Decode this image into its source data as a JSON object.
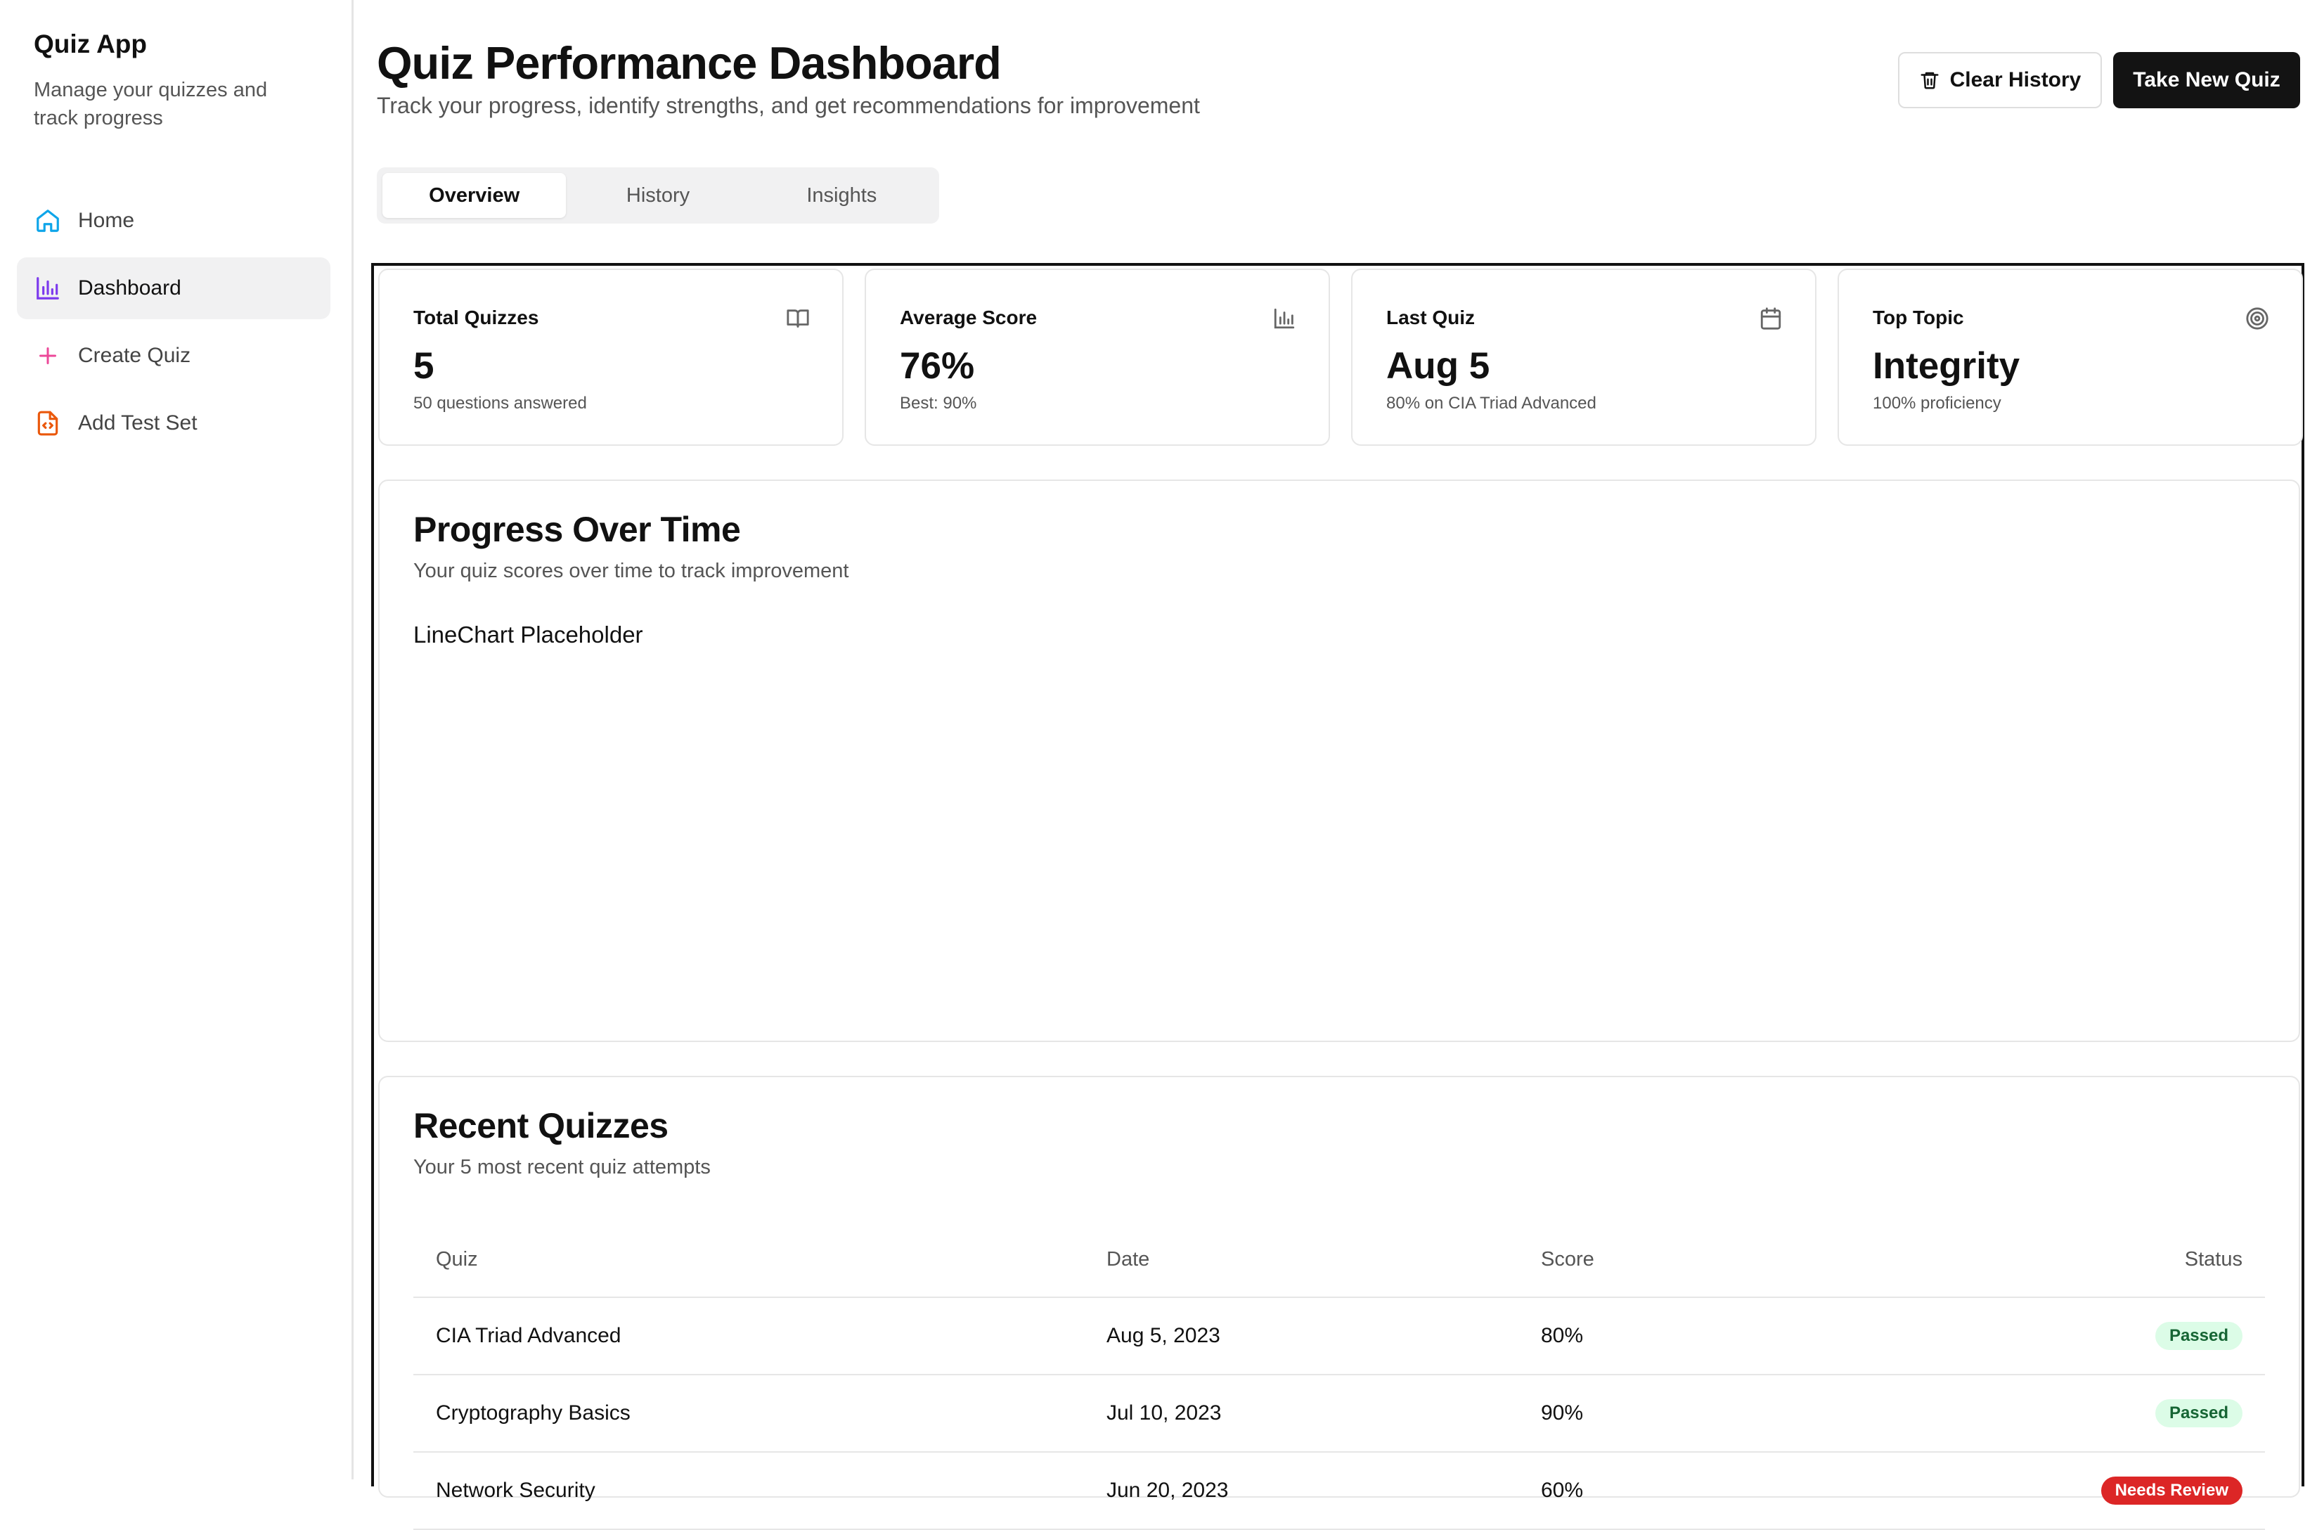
{
  "sidebar": {
    "app_title": "Quiz App",
    "app_subtitle": "Manage your quizzes and track progress",
    "items": [
      {
        "label": "Home",
        "icon": "home-icon",
        "color": "#0ea5e9"
      },
      {
        "label": "Dashboard",
        "icon": "bar-chart-icon",
        "color": "#7c3aed",
        "active": true
      },
      {
        "label": "Create Quiz",
        "icon": "plus-icon",
        "color": "#ec4899"
      },
      {
        "label": "Add Test Set",
        "icon": "file-code-icon",
        "color": "#ea580c"
      }
    ]
  },
  "header": {
    "title": "Quiz Performance Dashboard",
    "subtitle": "Track your progress, identify strengths, and get recommendations for improvement",
    "clear_label": "Clear History",
    "new_label": "Take New Quiz"
  },
  "tabs": [
    "Overview",
    "History",
    "Insights"
  ],
  "stats": [
    {
      "label": "Total Quizzes",
      "value": "5",
      "note": "50 questions answered",
      "icon": "book-icon"
    },
    {
      "label": "Average Score",
      "value": "76%",
      "note": "Best: 90%",
      "icon": "bar-chart-icon"
    },
    {
      "label": "Last Quiz",
      "value": "Aug 5",
      "note": "80% on CIA Triad Advanced",
      "icon": "calendar-icon"
    },
    {
      "label": "Top Topic",
      "value": "Integrity",
      "note": "100% proficiency",
      "icon": "target-icon"
    }
  ],
  "progress": {
    "title": "Progress Over Time",
    "subtitle": "Your quiz scores over time to track improvement",
    "placeholder": "LineChart Placeholder"
  },
  "recent": {
    "title": "Recent Quizzes",
    "subtitle": "Your 5 most recent quiz attempts",
    "columns": [
      "Quiz",
      "Date",
      "Score",
      "Status"
    ],
    "rows": [
      {
        "quiz": "CIA Triad Advanced",
        "date": "Aug 5, 2023",
        "score": "80%",
        "status": "Passed"
      },
      {
        "quiz": "Cryptography Basics",
        "date": "Jul 10, 2023",
        "score": "90%",
        "status": "Passed"
      },
      {
        "quiz": "Network Security",
        "date": "Jun 20, 2023",
        "score": "60%",
        "status": "Needs Review"
      }
    ]
  },
  "colors": {
    "primary_button": "#131313",
    "passed_badge": "#dcfce7",
    "review_badge": "#dc2626"
  }
}
